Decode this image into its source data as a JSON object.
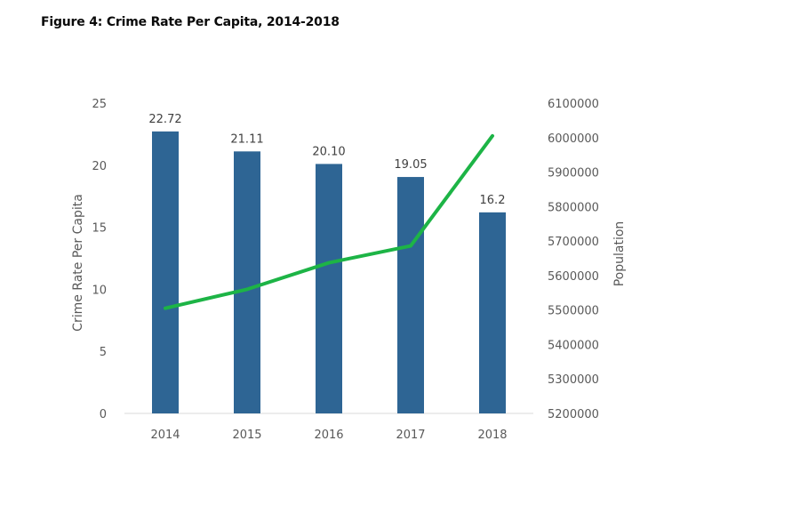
{
  "figure": {
    "title": "Figure 4: Crime Rate Per Capita, 2014-2018"
  },
  "chart_data": {
    "type": "bar",
    "categories": [
      "2014",
      "2015",
      "2016",
      "2017",
      "2018"
    ],
    "series": [
      {
        "type": "bar",
        "axis": "left",
        "values": [
          22.72,
          21.11,
          20.1,
          19.05,
          16.2
        ],
        "labels": [
          "22.72",
          "21.11",
          "20.10",
          "19.05",
          "16.2"
        ],
        "color": "#2e6594"
      },
      {
        "type": "line",
        "axis": "right",
        "values": [
          5505000,
          5560000,
          5637000,
          5686000,
          6005000
        ],
        "color": "#1db446"
      }
    ],
    "ylabel": "Crime Rate Per Capita",
    "ylim": [
      0,
      25
    ],
    "yticks": [
      "0",
      "5",
      "10",
      "15",
      "20",
      "25"
    ],
    "y2label": "Population",
    "y2lim": [
      5200000,
      6100000
    ],
    "y2ticks": [
      "5200000",
      "5300000",
      "5400000",
      "5500000",
      "5600000",
      "5700000",
      "5800000",
      "5900000",
      "6000000",
      "6100000"
    ],
    "grid": false,
    "legend": "none"
  }
}
